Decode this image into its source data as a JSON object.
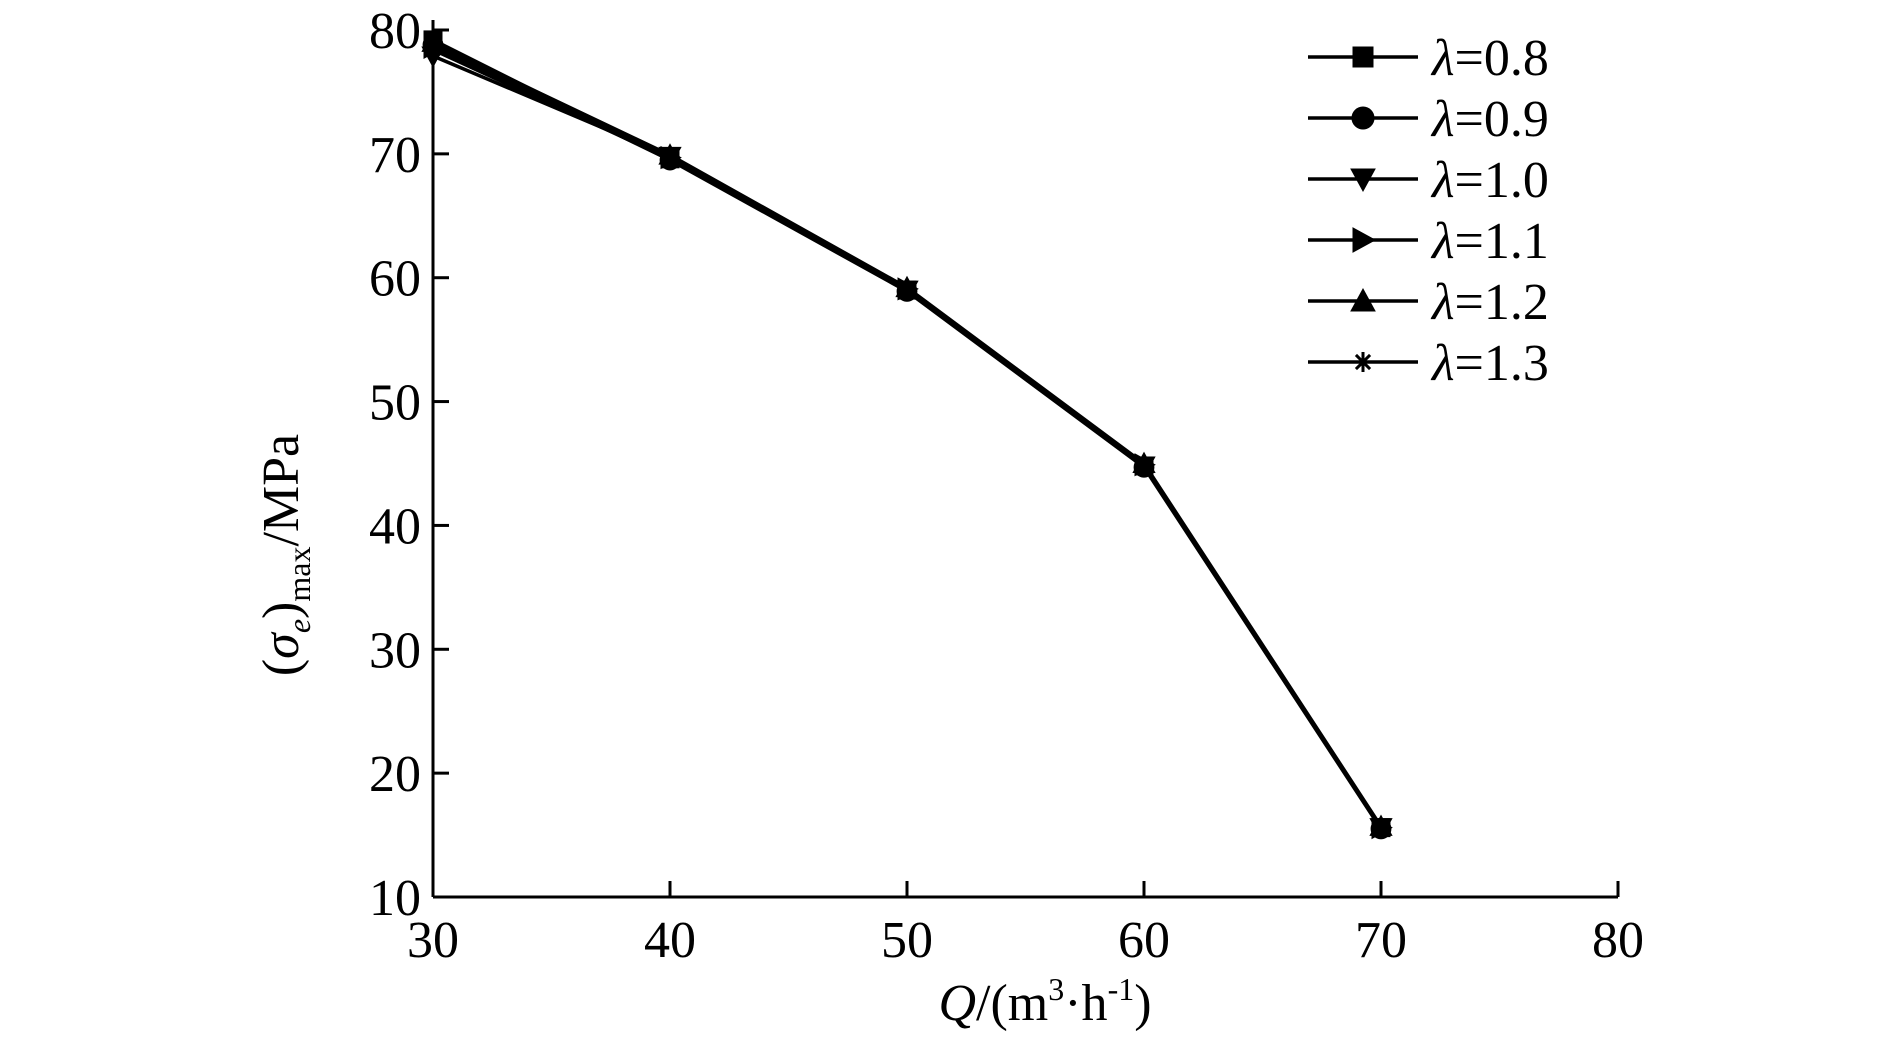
{
  "chart_data": {
    "type": "line",
    "title": "",
    "xlabel": {
      "italic": "Q",
      "prefix": "/(m",
      "sup1": "3",
      "mid": "·h",
      "sup2": "-1",
      "suffix": ")"
    },
    "ylabel": {
      "open": "(",
      "italic": "σ",
      "sub_italic": "e",
      "close": ")",
      "sub": "max",
      "suffix": "/MPa"
    },
    "xlim": [
      30,
      80
    ],
    "ylim": [
      10,
      80
    ],
    "xticks": [
      "30",
      "40",
      "50",
      "60",
      "70",
      "80"
    ],
    "yticks": [
      "10",
      "20",
      "30",
      "40",
      "50",
      "60",
      "70",
      "80"
    ],
    "grid": false,
    "legend_position": "top-right",
    "x": [
      30,
      40,
      50,
      60,
      70
    ],
    "series": [
      {
        "name": "λ=0.8",
        "name_italic": "λ",
        "name_value": "=0.8",
        "marker": "square",
        "color": "#000000",
        "values": [
          79.2,
          69.6,
          59.0,
          44.8,
          15.6
        ]
      },
      {
        "name": "λ=0.9",
        "name_italic": "λ",
        "name_value": "=0.9",
        "marker": "circle",
        "color": "#000000",
        "values": [
          78.8,
          69.5,
          58.9,
          44.7,
          15.5
        ]
      },
      {
        "name": "λ=1.0",
        "name_italic": "λ",
        "name_value": "=1.0",
        "marker": "triangle-down",
        "color": "#000000",
        "values": [
          77.9,
          69.8,
          59.0,
          44.8,
          15.6
        ]
      },
      {
        "name": "λ=1.1",
        "name_italic": "λ",
        "name_value": "=1.1",
        "marker": "triangle-right",
        "color": "#000000",
        "values": [
          78.6,
          69.7,
          59.1,
          44.9,
          15.6
        ]
      },
      {
        "name": "λ=1.2",
        "name_italic": "λ",
        "name_value": "=1.2",
        "marker": "triangle-up",
        "color": "#000000",
        "values": [
          79.0,
          69.9,
          59.2,
          45.0,
          15.7
        ]
      },
      {
        "name": "λ=1.3",
        "name_italic": "λ",
        "name_value": "=1.3",
        "marker": "star",
        "color": "#000000",
        "values": [
          78.4,
          69.6,
          59.0,
          44.8,
          15.6
        ]
      }
    ]
  }
}
